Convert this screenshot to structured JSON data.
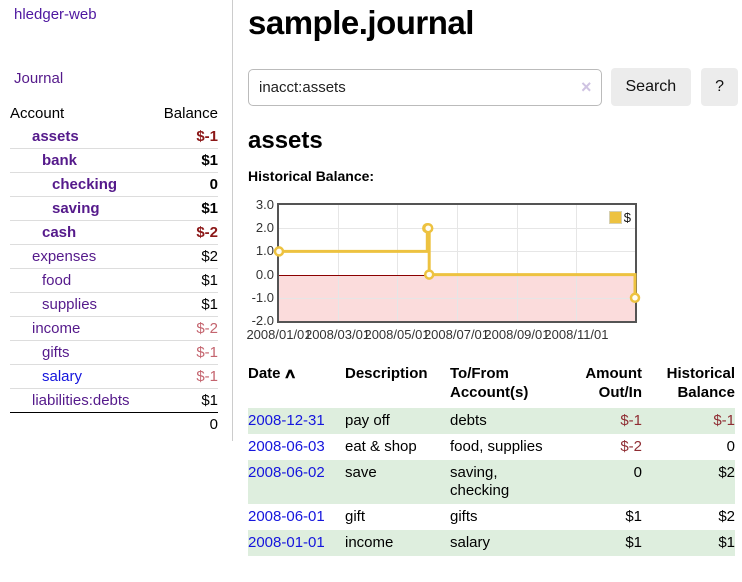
{
  "colors": {
    "link_purple": "#551a8b",
    "link_blue": "#1515dd",
    "negative_dark": "#8b1717",
    "negative_light": "#c4646e",
    "negative_table": "#8f2d33",
    "row_green": "#deeede",
    "series_yellow": "#edc240",
    "zero_line": "#8b0000",
    "negative_region": "#fbdcdc",
    "button_bg": "#ececec"
  },
  "sidebar": {
    "app_title": "hledger-web",
    "journal_link": "Journal",
    "accounts": {
      "header_account": "Account",
      "header_balance": "Balance",
      "rows": [
        {
          "name": "assets",
          "balance": "$-1",
          "indent": 1,
          "bold": true,
          "neg": "dark"
        },
        {
          "name": "bank",
          "balance": "$1",
          "indent": 2,
          "bold": true,
          "neg": null
        },
        {
          "name": "checking",
          "balance": "0",
          "indent": 3,
          "bold": true,
          "neg": null
        },
        {
          "name": "saving",
          "balance": "$1",
          "indent": 3,
          "bold": true,
          "neg": null
        },
        {
          "name": "cash",
          "balance": "$-2",
          "indent": 2,
          "bold": true,
          "neg": "dark"
        },
        {
          "name": "expenses",
          "balance": "$2",
          "indent": 1,
          "bold": false,
          "neg": null
        },
        {
          "name": "food",
          "balance": "$1",
          "indent": 2,
          "bold": false,
          "neg": null
        },
        {
          "name": "supplies",
          "balance": "$1",
          "indent": 2,
          "bold": false,
          "neg": null
        },
        {
          "name": "income",
          "balance": "$-2",
          "indent": 1,
          "bold": false,
          "neg": "light"
        },
        {
          "name": "gifts",
          "balance": "$-1",
          "indent": 2,
          "bold": false,
          "neg": "light"
        },
        {
          "name": "salary",
          "balance": "$-1",
          "indent": 2,
          "bold": false,
          "neg": "light",
          "blue": true
        },
        {
          "name": "liabilities:debts",
          "balance": "$1",
          "indent": 1,
          "bold": false,
          "neg": null
        }
      ],
      "total": "0"
    }
  },
  "main": {
    "title": "sample.journal",
    "search": {
      "query": "inacct:assets",
      "clear_icon": "×",
      "search_button": "Search",
      "help_button": "?"
    },
    "heading": "assets",
    "chart_title": "Historical Balance:"
  },
  "chart_data": {
    "type": "line",
    "step": true,
    "title": "Historical Balance",
    "legend": "$",
    "legend_position": "top-right",
    "grid": true,
    "xlim": [
      "2008-01-01",
      "2008-12-31"
    ],
    "ylim": [
      -2.0,
      3.0
    ],
    "yticks": [
      "3.0",
      "2.0",
      "1.0",
      "0.0",
      "-1.0",
      "-2.0"
    ],
    "xticks": [
      "2008/01/01",
      "2008/03/01",
      "2008/05/01",
      "2008/07/01",
      "2008/09/01",
      "2008/11/01"
    ],
    "series": [
      {
        "name": "$",
        "color": "#edc240",
        "points": [
          {
            "x": "2008-01-01",
            "y": 1
          },
          {
            "x": "2008-06-01",
            "y": 2
          },
          {
            "x": "2008-06-02",
            "y": 2
          },
          {
            "x": "2008-06-03",
            "y": 0
          },
          {
            "x": "2008-12-31",
            "y": -1
          }
        ]
      }
    ]
  },
  "register": {
    "headers": {
      "date": "Date",
      "description": "Description",
      "account": "To/From Account(s)",
      "amount": "Amount Out/In",
      "balance": "Historical Balance"
    },
    "sort_icon": "∧",
    "rows": [
      {
        "date": "2008-12-31",
        "description": "pay off",
        "accounts": "debts",
        "amount": "$-1",
        "balance": "$-1",
        "amount_neg": true,
        "balance_neg": true
      },
      {
        "date": "2008-06-03",
        "description": "eat & shop",
        "accounts": "food, supplies",
        "amount": "$-2",
        "balance": "0",
        "amount_neg": true,
        "balance_neg": false
      },
      {
        "date": "2008-06-02",
        "description": "save",
        "accounts": "saving, checking",
        "amount": "0",
        "balance": "$2",
        "amount_neg": false,
        "balance_neg": false
      },
      {
        "date": "2008-06-01",
        "description": "gift",
        "accounts": "gifts",
        "amount": "$1",
        "balance": "$2",
        "amount_neg": false,
        "balance_neg": false
      },
      {
        "date": "2008-01-01",
        "description": "income",
        "accounts": "salary",
        "amount": "$1",
        "balance": "$1",
        "amount_neg": false,
        "balance_neg": false
      }
    ]
  }
}
